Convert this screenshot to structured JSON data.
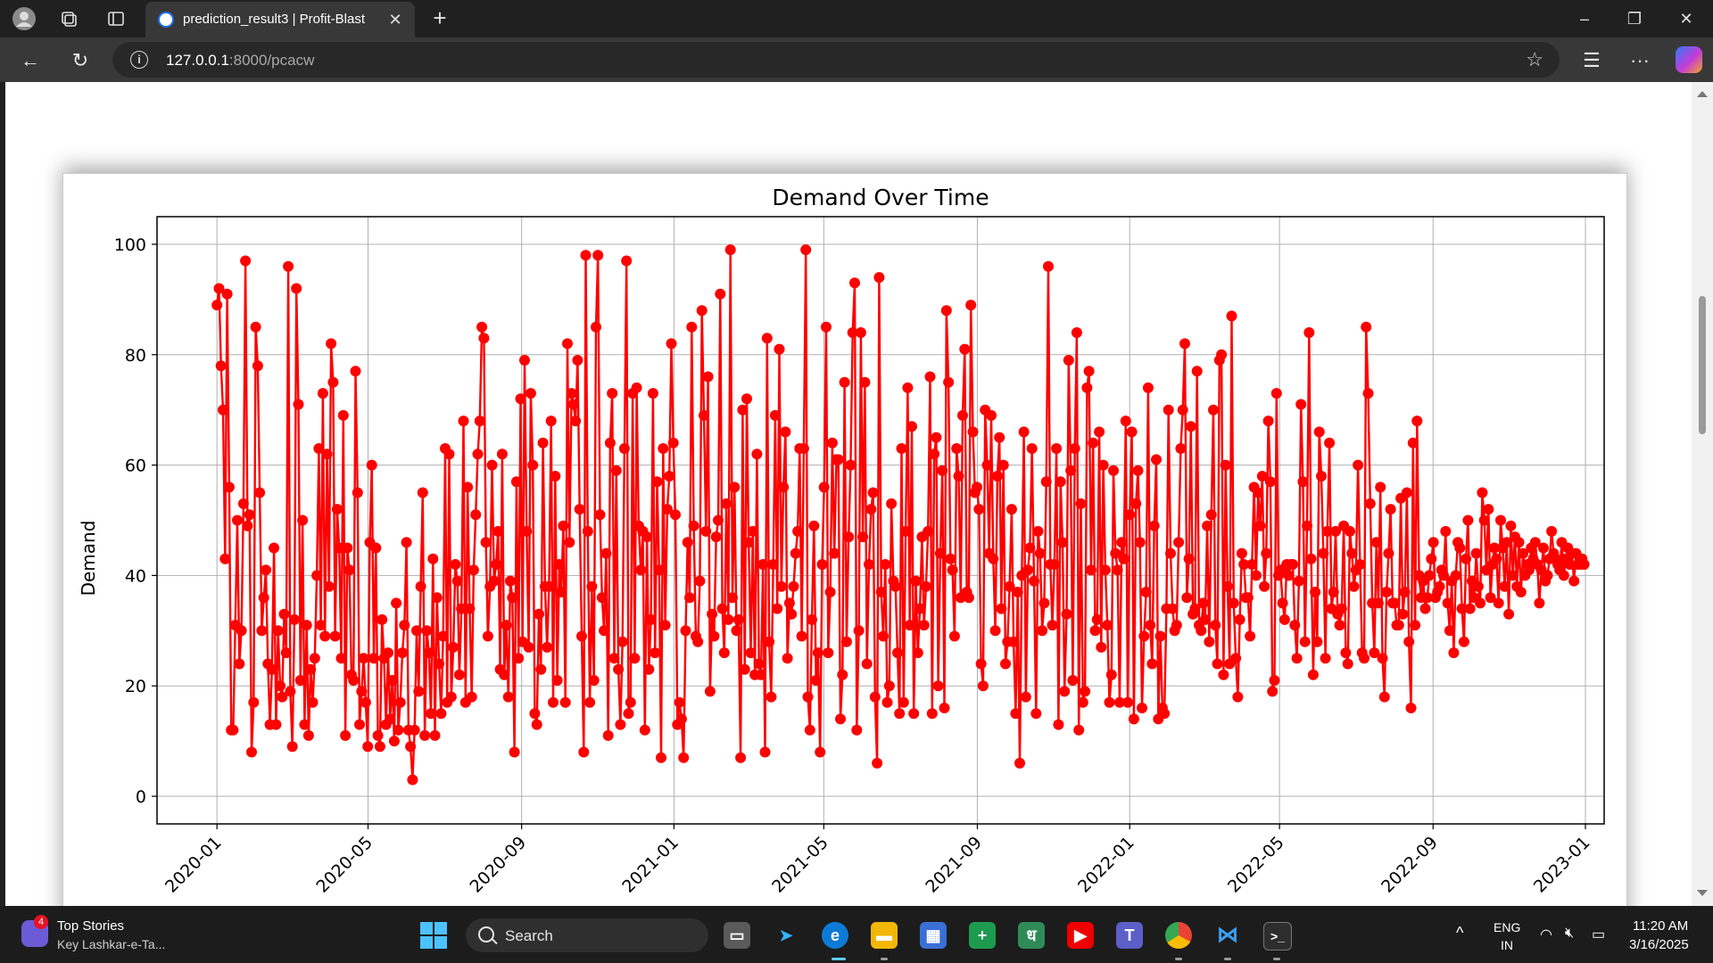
{
  "browser": {
    "tab_title": "prediction_result3 | Profit-Blast",
    "url_host": "127.0.0.1",
    "url_path": ":8000/pcacw"
  },
  "colors": {
    "series": "#ff0000",
    "accent": "#4cc2ff"
  },
  "icons": [
    "profile-icon",
    "workspaces-icon",
    "vertical-tabs-icon",
    "back-icon",
    "refresh-icon",
    "info-icon",
    "favorite-star-icon",
    "favorites-icon",
    "more-icon",
    "copilot-icon"
  ],
  "chart_data": {
    "type": "line",
    "title": "Demand Over Time",
    "xlabel": "",
    "ylabel": "Demand",
    "x_ticks": [
      "2020-01",
      "2020-05",
      "2020-09",
      "2021-01",
      "2021-05",
      "2021-09",
      "2022-01",
      "2022-05",
      "2022-09",
      "2023-01"
    ],
    "y_ticks": [
      "0",
      "20",
      "40",
      "60",
      "80",
      "100"
    ],
    "xlim": [
      "2019-11-14",
      "2023-01-16"
    ],
    "ylim": [
      -5,
      105
    ],
    "grid": true,
    "marker": "circle",
    "x_start": "2020-01-01",
    "x_end": "2022-12-31",
    "values": [
      89,
      92,
      78,
      70,
      43,
      91,
      56,
      12,
      12,
      31,
      50,
      24,
      30,
      53,
      97,
      49,
      51,
      8,
      17,
      85,
      78,
      55,
      30,
      36,
      41,
      24,
      13,
      23,
      45,
      13,
      30,
      20,
      18,
      33,
      26,
      96,
      19,
      9,
      32,
      92,
      71,
      21,
      50,
      13,
      31,
      11,
      23,
      17,
      25,
      40,
      63,
      31,
      73,
      29,
      62,
      38,
      82,
      75,
      29,
      52,
      45,
      25,
      69,
      11,
      45,
      41,
      22,
      21,
      77,
      55,
      13,
      19,
      25,
      17,
      9,
      46,
      60,
      25,
      45,
      11,
      9,
      32,
      25,
      13,
      26,
      14,
      21,
      10,
      35,
      12,
      17,
      26,
      31,
      46,
      12,
      9,
      3,
      12,
      30,
      19,
      38,
      55,
      11,
      30,
      26,
      15,
      43,
      11,
      36,
      24,
      15,
      29,
      63,
      17,
      62,
      18,
      27,
      42,
      39,
      22,
      34,
      68,
      17,
      56,
      34,
      18,
      41,
      51,
      62,
      68,
      85,
      83,
      46,
      29,
      38,
      60,
      39,
      42,
      48,
      23,
      62,
      22,
      31,
      18,
      39,
      36,
      8,
      57,
      25,
      72,
      28,
      79,
      48,
      27,
      73,
      60,
      15,
      13,
      33,
      23,
      64,
      38,
      27,
      38,
      68,
      17,
      58,
      21,
      42,
      37,
      49,
      17,
      82,
      46,
      73,
      71,
      68,
      79,
      52,
      29,
      8,
      98,
      48,
      17,
      38,
      21,
      85,
      98,
      51,
      36,
      30,
      44,
      11,
      64,
      73,
      25,
      59,
      23,
      13,
      28,
      63,
      97,
      15,
      17,
      73,
      25,
      74,
      49,
      41,
      48,
      12,
      47,
      23,
      32,
      73,
      26,
      57,
      41,
      7,
      63,
      31,
      52,
      58,
      82,
      64,
      51,
      13,
      17,
      14,
      7,
      30,
      46,
      36,
      85,
      49,
      29,
      28,
      39,
      88,
      69,
      48,
      76,
      19,
      33,
      29,
      47,
      50,
      91,
      34,
      26,
      53,
      32,
      99,
      36,
      56,
      30,
      32,
      7,
      70,
      23,
      72,
      46,
      26,
      48,
      22,
      62,
      24,
      22,
      42,
      8,
      83,
      28,
      18,
      42,
      69,
      34,
      81,
      38,
      56,
      66,
      25,
      35,
      33,
      38,
      44,
      48,
      63,
      29,
      63,
      99,
      18,
      12,
      32,
      49,
      21,
      26,
      8,
      42,
      56,
      85,
      26,
      37,
      64,
      44,
      61,
      61,
      14,
      22,
      75,
      28,
      47,
      60,
      84,
      93,
      12,
      30,
      84,
      47,
      75,
      24,
      42,
      52,
      55,
      18,
      6,
      94,
      37,
      29,
      42,
      17,
      20,
      53,
      39,
      38,
      26,
      15,
      63,
      17,
      48,
      74,
      31,
      67,
      15,
      39,
      26,
      34,
      47,
      31,
      38,
      48,
      76,
      15,
      62,
      65,
      20,
      44,
      59,
      16,
      88,
      75,
      43,
      41,
      29,
      63,
      58,
      36,
      69,
      81,
      37,
      36,
      89,
      66,
      55,
      56,
      52,
      24,
      20,
      70,
      60,
      44,
      69,
      43,
      30,
      58,
      65,
      34,
      60,
      24,
      28,
      38,
      52,
      28,
      15,
      37,
      6,
      40,
      66,
      18,
      41,
      45,
      63,
      39,
      15,
      48,
      44,
      30,
      35,
      57,
      96,
      42,
      31,
      42,
      63,
      13,
      57,
      46,
      19,
      33,
      79,
      59,
      21,
      63,
      84,
      12,
      53,
      17,
      19,
      74,
      77,
      41,
      64,
      30,
      32,
      66,
      27,
      60,
      41,
      31,
      17,
      22,
      59,
      44,
      41,
      17,
      46,
      43,
      68,
      17,
      51,
      66,
      14,
      53,
      59,
      46,
      16,
      29,
      37,
      74,
      31,
      24,
      49,
      61,
      14,
      29,
      16,
      15,
      34,
      70,
      44,
      34,
      30,
      31,
      46,
      63,
      70,
      82,
      36,
      43,
      67,
      33,
      34,
      77,
      31,
      30,
      35,
      32,
      49,
      28,
      51,
      70,
      31,
      24,
      79,
      80,
      22,
      60,
      38,
      24,
      87,
      35,
      25,
      18,
      32,
      44,
      42,
      36,
      36,
      29,
      42,
      56,
      40,
      55,
      49,
      58,
      38,
      44,
      68,
      57,
      19,
      21,
      73,
      40,
      41,
      35,
      32,
      42,
      40,
      42,
      42,
      31,
      25,
      39,
      71,
      57,
      28,
      49,
      84,
      43,
      22,
      37,
      28,
      66,
      58,
      44,
      25,
      48,
      64,
      34,
      37,
      48,
      33,
      31,
      34,
      49,
      26,
      24,
      48,
      44,
      38,
      41,
      60,
      42,
      26,
      25,
      85,
      73,
      53,
      35,
      26,
      46,
      35,
      56,
      25,
      18,
      37,
      44,
      52,
      35,
      35,
      31,
      31,
      54,
      33,
      37,
      55,
      28,
      16,
      64,
      31,
      68,
      40,
      36,
      39,
      34,
      36,
      40,
      43,
      46,
      36,
      37,
      38,
      41,
      40,
      48,
      35,
      30,
      39,
      26,
      40,
      46,
      45,
      34,
      28,
      43,
      50,
      34,
      39,
      36,
      44,
      38,
      35,
      55,
      50,
      41,
      52,
      36,
      42,
      45,
      43,
      35,
      50,
      45,
      38,
      46,
      33,
      49,
      40,
      47,
      38,
      46,
      37,
      44,
      40,
      42,
      41,
      45,
      43,
      46,
      42,
      35,
      41,
      45,
      39,
      40,
      43,
      48,
      44,
      43,
      42,
      41,
      46,
      40,
      43,
      45,
      42,
      44,
      39,
      44,
      42,
      42,
      43,
      42
    ],
    "series": [
      {
        "name": "Demand",
        "color": "#ff0000"
      }
    ]
  },
  "taskbar": {
    "news_title": "Top Stories",
    "news_sub": "Key Lashkar-e-Ta...",
    "news_badge": "4",
    "search_label": "Search",
    "lang_line1": "ENG",
    "lang_line2": "IN",
    "time": "11:20 AM",
    "date": "3/16/2025"
  }
}
